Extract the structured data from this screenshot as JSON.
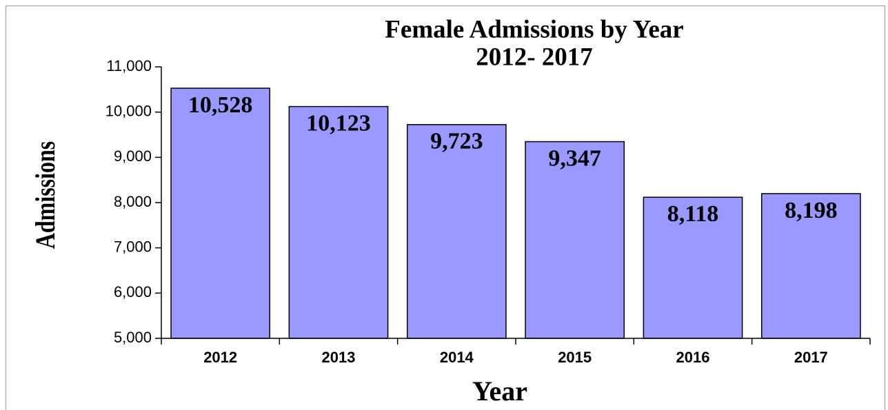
{
  "chart_data": {
    "type": "bar",
    "title": "Female Admissions by Year",
    "subtitle": "2012- 2017",
    "x_label": "Year",
    "y_label": "Admissions",
    "categories": [
      "2012",
      "2013",
      "2014",
      "2015",
      "2016",
      "2017"
    ],
    "values": [
      10528,
      10123,
      9723,
      9347,
      8118,
      8198
    ],
    "value_labels": [
      "10,528",
      "10,123",
      "9,723",
      "9,347",
      "8,118",
      "8,198"
    ],
    "color": "#9999ff",
    "ylim": [
      5000,
      11000
    ],
    "yticks": [
      {
        "value": 5000,
        "label": "5,000"
      },
      {
        "value": 6000,
        "label": "6,000"
      },
      {
        "value": 7000,
        "label": "7,000"
      },
      {
        "value": 8000,
        "label": "8,000"
      },
      {
        "value": 9000,
        "label": "9,000"
      },
      {
        "value": 10000,
        "label": "10,000"
      },
      {
        "value": 11000,
        "label": "11,000"
      }
    ],
    "grid": false
  }
}
